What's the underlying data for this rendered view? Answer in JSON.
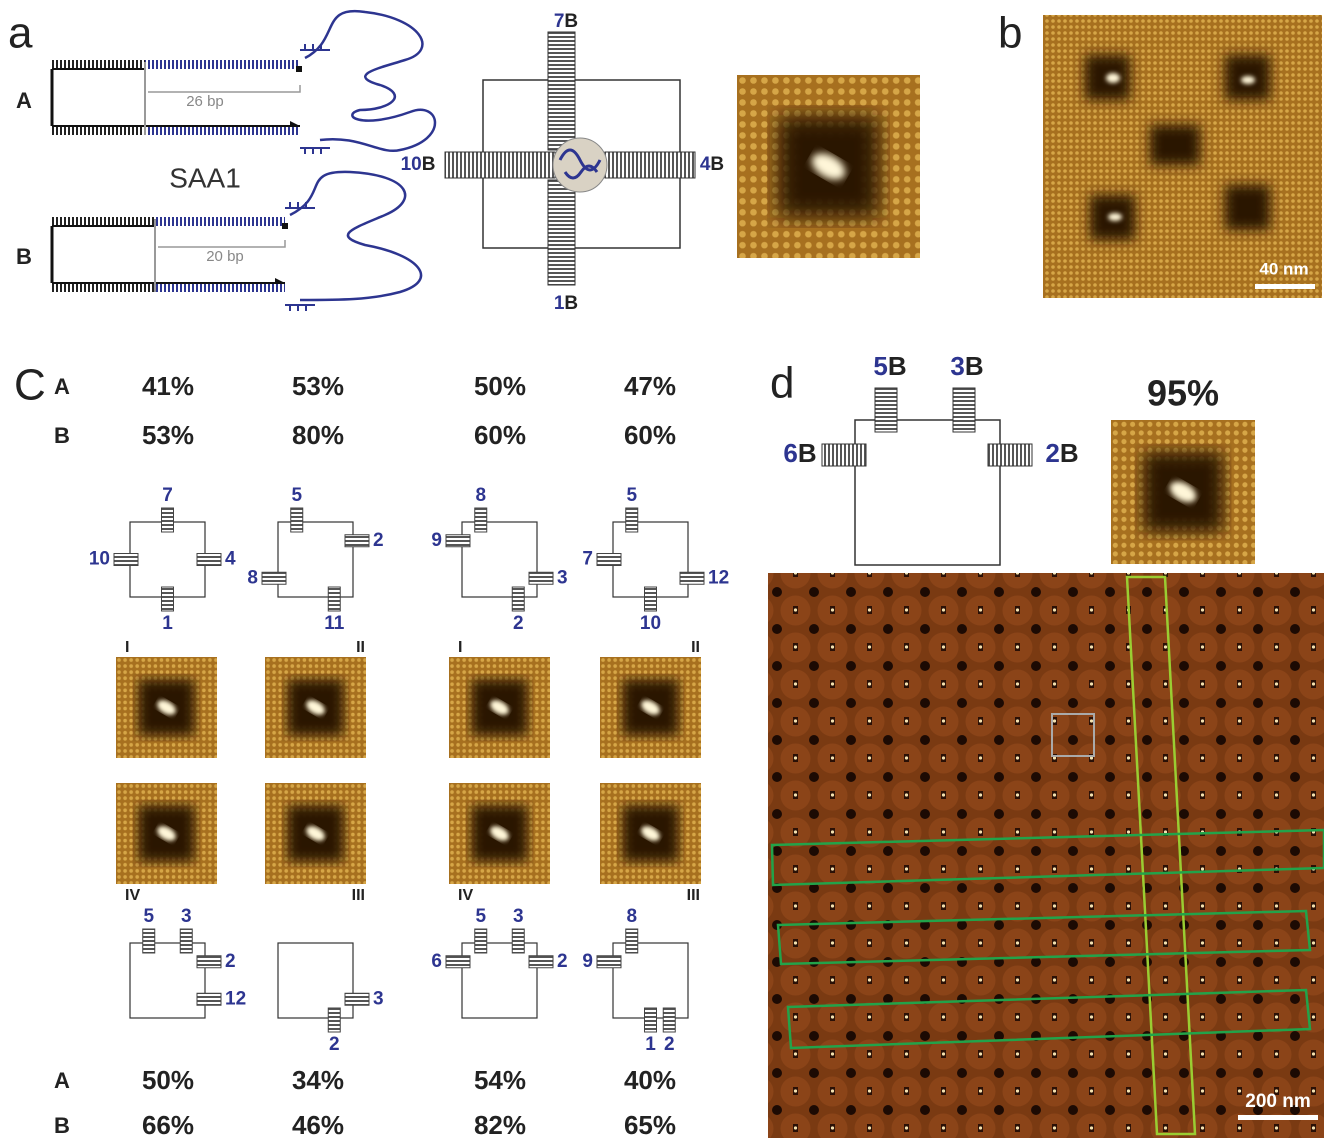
{
  "panel_a": {
    "label": "a",
    "strand_labels": [
      "A",
      "B"
    ],
    "bp_labels": [
      "26 bp",
      "20 bp"
    ],
    "construct": "SAA1",
    "arms": [
      {
        "number": "7",
        "letter": "B"
      },
      {
        "number": "10",
        "letter": "B"
      },
      {
        "number": "4",
        "letter": "B"
      },
      {
        "number": "1",
        "letter": "B"
      }
    ]
  },
  "panel_b": {
    "label": "b",
    "scale_bar": "40 nm"
  },
  "panel_c": {
    "label": "C",
    "top": {
      "row_labels": [
        "A",
        "B"
      ],
      "rows": [
        [
          "41%",
          "53%",
          "50%",
          "47%"
        ],
        [
          "53%",
          "80%",
          "60%",
          "60%"
        ]
      ]
    },
    "top_diagrams": [
      {
        "arms": [
          "7",
          "4",
          "1",
          "10"
        ]
      },
      {
        "arms": [
          "5",
          "2",
          "11",
          "8"
        ]
      },
      {
        "arms": [
          "8",
          "9",
          "3",
          "2"
        ]
      },
      {
        "arms": [
          "5",
          "7",
          "12",
          "10"
        ]
      }
    ],
    "orientation_top": [
      "I",
      "II",
      "I",
      "II"
    ],
    "orientation_bottom": [
      "IV",
      "III",
      "IV",
      "III"
    ],
    "bottom_diagrams": [
      {
        "arms": [
          "5",
          "3",
          "2",
          "12"
        ]
      },
      {
        "arms": [
          "3",
          "2"
        ]
      },
      {
        "arms": [
          "5",
          "3",
          "6",
          "2"
        ]
      },
      {
        "arms": [
          "8",
          "9",
          "1",
          "2"
        ]
      }
    ],
    "bottom": {
      "row_labels": [
        "A",
        "B"
      ],
      "rows": [
        [
          "50%",
          "34%",
          "54%",
          "40%"
        ],
        [
          "66%",
          "46%",
          "82%",
          "65%"
        ]
      ]
    }
  },
  "panel_d": {
    "label": "d",
    "arms": [
      {
        "number": "5",
        "letter": "B"
      },
      {
        "number": "3",
        "letter": "B"
      },
      {
        "number": "6",
        "letter": "B"
      },
      {
        "number": "2",
        "letter": "B"
      }
    ],
    "yield": "95%",
    "scale_bar": "200 nm"
  }
}
